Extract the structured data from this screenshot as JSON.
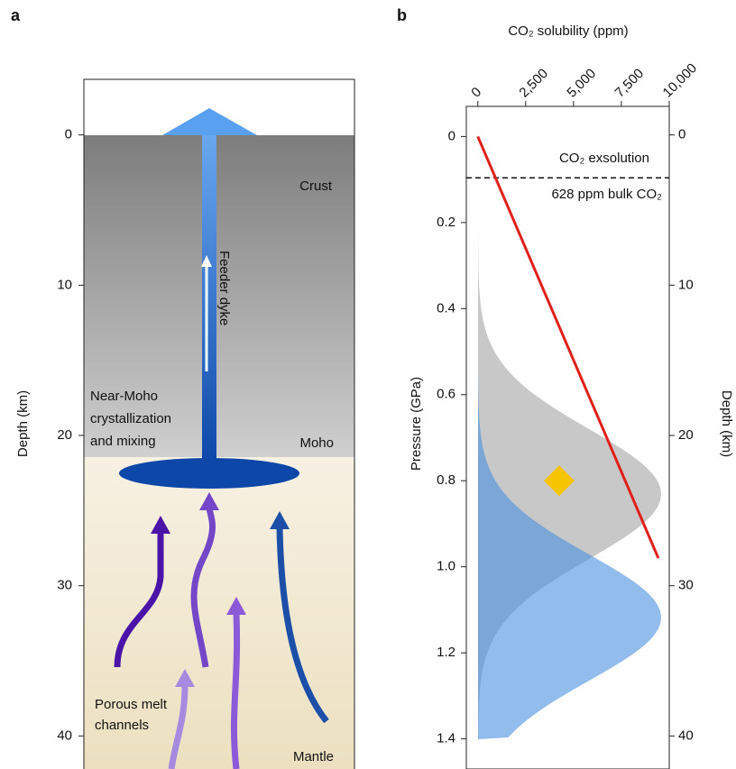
{
  "panel_a": {
    "label": "a",
    "y_label": "Depth (km)",
    "ylim": [
      42.2,
      -3.7
    ],
    "yticks": [
      0,
      10,
      20,
      30,
      40
    ],
    "crust": "Crust",
    "dyke": "Feeder dyke",
    "near_moho": [
      "Near-Moho",
      "crystallization",
      "and mixing"
    ],
    "moho": "Moho",
    "channels": [
      "Porous melt",
      "channels"
    ],
    "mantle": "Mantle"
  },
  "chart_data": {
    "type": "line",
    "label": "b",
    "x_label": "CO₂ solubility (ppm)",
    "y_label": "Pressure (GPa)",
    "y2_label": "Depth (km)",
    "xlim": [
      -600,
      10000
    ],
    "xticks": [
      0,
      {
        "value": 2500,
        "label": "2,500"
      },
      {
        "value": 5000,
        "label": "5,000"
      },
      {
        "value": 7500,
        "label": "7,500"
      },
      {
        "value": 10000,
        "label": "10,000"
      }
    ],
    "ylim": [
      1.47,
      -0.07
    ],
    "yticks": [
      0,
      0.2,
      0.4,
      0.6,
      0.8,
      {
        "value": 1,
        "label": "1.0"
      },
      1.2,
      1.4
    ],
    "y2lim": [
      42.2,
      -1.9
    ],
    "y2ticks": [
      0,
      10,
      20,
      30,
      40
    ],
    "hline": 0.096,
    "annotations": [
      "CO₂ exsolution",
      "628 ppm bulk CO₂"
    ],
    "series": [
      {
        "color": "#e0201b",
        "x": [
          0,
          9430
        ],
        "values": [
          0,
          0.98
        ]
      },
      {
        "color": "#f7c400",
        "marker": "diamond",
        "x": [
          4250
        ],
        "values": [
          0.8
        ]
      }
    ]
  }
}
